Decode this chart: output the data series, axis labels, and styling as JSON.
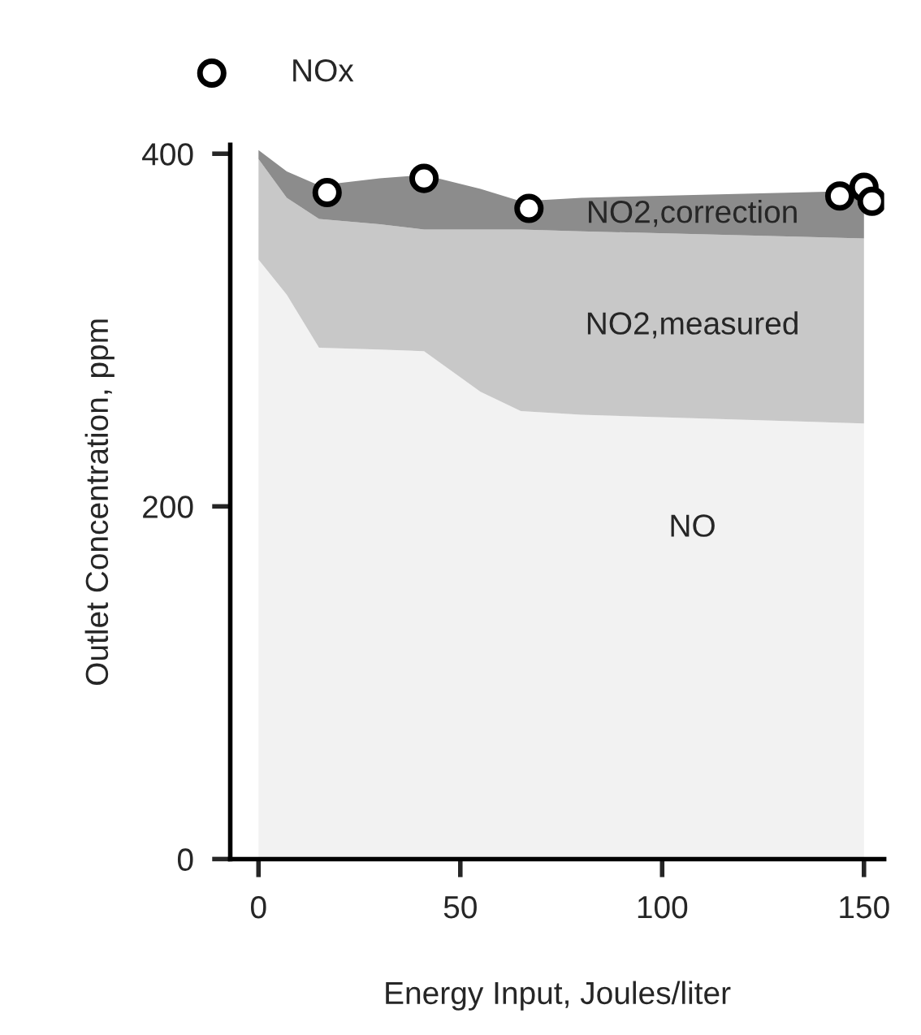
{
  "chart_data": {
    "type": "area",
    "stacked": true,
    "xlabel": "Energy Input, Joules/liter",
    "ylabel": "Outlet Concentration, ppm",
    "xlim": [
      -7,
      155
    ],
    "ylim": [
      0,
      405
    ],
    "xticks": [
      0,
      50,
      100,
      150
    ],
    "yticks": [
      0,
      200,
      400
    ],
    "grid": false,
    "legend": "top left",
    "series": [
      {
        "name": "NO",
        "color": "#f2f2f2",
        "x": [
          0,
          7,
          15,
          30,
          41,
          55,
          65,
          80,
          150
        ],
        "values": [
          340,
          320,
          290,
          289,
          288,
          265,
          254,
          252,
          247
        ]
      },
      {
        "name": "NO2,measured",
        "color": "#c8c8c8",
        "x": [
          0,
          7,
          15,
          30,
          41,
          55,
          65,
          80,
          150
        ],
        "values": [
          57,
          55,
          73,
          71,
          69,
          92,
          103,
          104,
          105
        ]
      },
      {
        "name": "NO2,correction",
        "color": "#8c8c8c",
        "x": [
          0,
          7,
          15,
          30,
          41,
          55,
          65,
          80,
          150
        ],
        "values": [
          5,
          15,
          19,
          26,
          31,
          23,
          16,
          19,
          27
        ]
      },
      {
        "name": "NOx",
        "type": "scatter",
        "marker": "circle",
        "color": "#000000",
        "x": [
          17,
          41,
          67,
          144,
          150,
          152
        ],
        "values": [
          378,
          386,
          369,
          376,
          381,
          373
        ]
      }
    ]
  }
}
